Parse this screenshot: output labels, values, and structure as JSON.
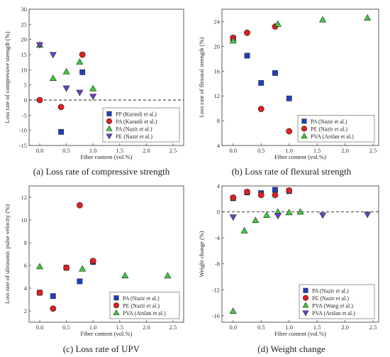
{
  "chart_data": [
    {
      "type": "scatter",
      "caption": "(a) Loss rate of compressive strength",
      "xlabel": "Fiber content (vol.%)",
      "ylabel": "Loss rate of compressive strength (%)",
      "xlim": [
        -0.2,
        2.7
      ],
      "ylim": [
        -15,
        30
      ],
      "xticks": [
        0.0,
        0.5,
        1.0,
        1.5,
        2.0,
        2.5
      ],
      "yticks": [
        -15,
        -10,
        -5,
        0,
        5,
        10,
        15,
        20,
        25,
        30
      ],
      "reference_line_y": 0,
      "legend_position": "bottom-right",
      "series": [
        {
          "name": "PP (Kuranli et al.)",
          "marker": "square",
          "color": "#1f3fbf",
          "x": [
            0.4,
            0.8
          ],
          "y": [
            -10.5,
            9.2
          ]
        },
        {
          "name": "PA (Kuranli et al.)",
          "marker": "circle",
          "color": "#e02020",
          "x": [
            0.0,
            0.4,
            0.8
          ],
          "y": [
            0.0,
            -2.3,
            15.0
          ]
        },
        {
          "name": "PA (Nazir et al.)",
          "marker": "triangle-up",
          "color": "#3dcc3d",
          "x": [
            0.0,
            0.25,
            0.5,
            0.75,
            1.0
          ],
          "y": [
            18.2,
            7.2,
            9.4,
            12.6,
            3.8
          ]
        },
        {
          "name": "PE (Nazir et al.)",
          "marker": "triangle-down",
          "color": "#6a3fc8",
          "x": [
            0.0,
            0.25,
            0.5,
            0.75,
            1.0
          ],
          "y": [
            18.2,
            15.0,
            3.9,
            2.5,
            1.2
          ]
        }
      ]
    },
    {
      "type": "scatter",
      "caption": "(b) Loss rate of flexural strength",
      "xlabel": "Fiber content (vol.%)",
      "ylabel": "Loss rate of flexural strength (%)",
      "xlim": [
        -0.2,
        2.6
      ],
      "ylim": [
        4,
        26
      ],
      "xticks": [
        0.0,
        0.5,
        1.0,
        1.5,
        2.0,
        2.5
      ],
      "yticks": [
        4,
        8,
        12,
        16,
        20,
        24
      ],
      "legend_position": "bottom-right",
      "series": [
        {
          "name": "PA (Nazir et al.)",
          "marker": "square",
          "color": "#1f3fbf",
          "x": [
            0.0,
            0.25,
            0.5,
            0.75,
            1.0
          ],
          "y": [
            21.3,
            18.5,
            14.1,
            15.7,
            11.6
          ]
        },
        {
          "name": "PE (Nazir et al.)",
          "marker": "circle",
          "color": "#e02020",
          "x": [
            0.0,
            0.25,
            0.5,
            0.75,
            1.0
          ],
          "y": [
            21.4,
            22.2,
            9.9,
            23.2,
            6.3
          ]
        },
        {
          "name": "PVA (Arslan et al.)",
          "marker": "triangle-up",
          "color": "#3dcc3d",
          "x": [
            0.0,
            0.8,
            1.6,
            2.4
          ],
          "y": [
            20.9,
            23.6,
            24.3,
            24.6
          ]
        }
      ]
    },
    {
      "type": "scatter",
      "caption": "(c) Loss rate of UPV",
      "xlabel": "Fiber content (vol.%)",
      "ylabel": "Loss rate of ultrasonic pulse velocity (%)",
      "xlim": [
        -0.2,
        2.7
      ],
      "ylim": [
        1,
        13
      ],
      "xticks": [
        0.0,
        0.5,
        1.0,
        1.5,
        2.0,
        2.5
      ],
      "yticks": [
        2,
        4,
        6,
        8,
        10,
        12
      ],
      "legend_position": "bottom-right",
      "series": [
        {
          "name": "PA (Nazir et al.)",
          "marker": "square",
          "color": "#1f3fbf",
          "x": [
            0.0,
            0.25,
            0.5,
            0.75,
            1.0
          ],
          "y": [
            3.6,
            3.3,
            5.8,
            4.6,
            6.3
          ]
        },
        {
          "name": "PE (Nazir et al.)",
          "marker": "circle",
          "color": "#e02020",
          "x": [
            0.0,
            0.25,
            0.5,
            0.75,
            1.0
          ],
          "y": [
            3.6,
            2.2,
            5.8,
            11.3,
            6.4
          ]
        },
        {
          "name": "PVA (Arslan et al.)",
          "marker": "triangle-up",
          "color": "#3dcc3d",
          "x": [
            0.0,
            0.8,
            1.6,
            2.4
          ],
          "y": [
            5.9,
            5.7,
            5.1,
            5.1
          ]
        }
      ]
    },
    {
      "type": "scatter",
      "caption": "(d) Weight change",
      "xlabel": "Fiber content (vol.%)",
      "ylabel": "Weight change (%)",
      "xlim": [
        -0.2,
        2.6
      ],
      "ylim": [
        -17,
        4
      ],
      "xticks": [
        0.0,
        0.5,
        1.0,
        1.5,
        2.0,
        2.5
      ],
      "yticks": [
        -16,
        -12,
        -8,
        -4,
        0,
        4
      ],
      "reference_line_y": 0,
      "legend_position": "bottom-right",
      "series": [
        {
          "name": "PA (Nazir et al.)",
          "marker": "square",
          "color": "#1f3fbf",
          "x": [
            0.0,
            0.25,
            0.5,
            0.75,
            1.0
          ],
          "y": [
            2.1,
            3.0,
            2.9,
            3.4,
            3.2
          ]
        },
        {
          "name": "PE (Nazir et al.)",
          "marker": "circle",
          "color": "#e02020",
          "x": [
            0.0,
            0.25,
            0.5,
            0.75,
            1.0
          ],
          "y": [
            2.2,
            3.1,
            2.6,
            2.6,
            3.3
          ]
        },
        {
          "name": "PVA (Wang et al.)",
          "marker": "triangle-up",
          "color": "#3dcc3d",
          "x": [
            0.0,
            0.2,
            0.4,
            0.6,
            0.8,
            1.0,
            1.2
          ],
          "y": [
            -15.3,
            -2.9,
            -1.3,
            -0.5,
            0.0,
            -0.1,
            0.0
          ]
        },
        {
          "name": "PVA (Arslan et al.)",
          "marker": "triangle-down",
          "color": "#6a3fc8",
          "x": [
            0.0,
            0.8,
            1.6,
            2.4
          ],
          "y": [
            -0.8,
            -0.6,
            -0.5,
            -0.4
          ]
        }
      ]
    }
  ]
}
